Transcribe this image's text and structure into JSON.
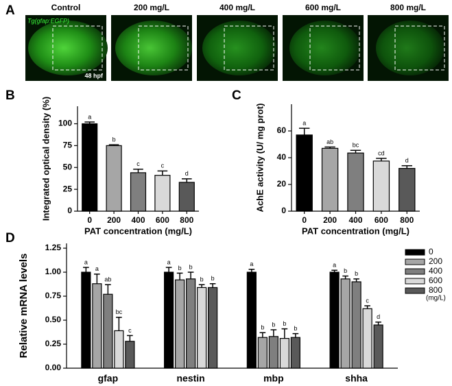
{
  "panels": [
    "A",
    "B",
    "C",
    "D"
  ],
  "images": {
    "titles": [
      "Control",
      "200 mg/L",
      "400 mg/L",
      "600 mg/L",
      "800 mg/L"
    ],
    "label": "Tg(gfap:EGFP)",
    "stage": "48 hpf"
  },
  "chart_data": [
    {
      "type": "bar",
      "ylabel": "Integrated optical density (%)",
      "xlabel": "PAT concentration (mg/L)",
      "categories": [
        "0",
        "200",
        "400",
        "600",
        "800"
      ],
      "values": [
        100,
        75,
        44,
        41,
        33
      ],
      "errors": [
        2,
        1,
        4,
        5,
        4
      ],
      "letters": [
        "a",
        "b",
        "c",
        "c",
        "d"
      ],
      "colors": [
        "#000000",
        "#a6a6a6",
        "#7f7f7f",
        "#d9d9d9",
        "#595959"
      ],
      "ylim": [
        0,
        120
      ],
      "yticks": [
        0,
        25,
        50,
        75,
        100
      ]
    },
    {
      "type": "bar",
      "ylabel": "AchE activity (U/ mg prot)",
      "xlabel": "PAT concentration (mg/L)",
      "categories": [
        "0",
        "200",
        "400",
        "600",
        "800"
      ],
      "values": [
        57,
        47,
        43.5,
        37.5,
        32
      ],
      "errors": [
        5,
        1,
        2,
        2,
        2
      ],
      "letters": [
        "a",
        "ab",
        "bc",
        "cd",
        "d"
      ],
      "colors": [
        "#000000",
        "#a6a6a6",
        "#7f7f7f",
        "#d9d9d9",
        "#595959"
      ],
      "ylim": [
        0,
        80
      ],
      "yticks": [
        0,
        20,
        40,
        60
      ]
    },
    {
      "type": "grouped_bar",
      "ylabel": "Relative mRNA levels",
      "categories": [
        "gfap",
        "nestin",
        "mbp",
        "shha"
      ],
      "legend_note": "(mg/L)",
      "series": [
        {
          "name": "0",
          "color": "#000000",
          "values": [
            1.0,
            1.0,
            1.0,
            1.0
          ],
          "errors": [
            0.05,
            0.05,
            0.03,
            0.02
          ],
          "letters": [
            "a",
            "a",
            "a",
            "a"
          ]
        },
        {
          "name": "200",
          "color": "#a6a6a6",
          "values": [
            0.88,
            0.92,
            0.32,
            0.93
          ],
          "errors": [
            0.1,
            0.07,
            0.05,
            0.03
          ],
          "letters": [
            "a",
            "b",
            "b",
            "b"
          ]
        },
        {
          "name": "400",
          "color": "#7f7f7f",
          "values": [
            0.77,
            0.93,
            0.33,
            0.9
          ],
          "errors": [
            0.1,
            0.07,
            0.07,
            0.03
          ],
          "letters": [
            "ab",
            "b",
            "b",
            "b"
          ]
        },
        {
          "name": "600",
          "color": "#d9d9d9",
          "values": [
            0.39,
            0.84,
            0.31,
            0.62
          ],
          "errors": [
            0.14,
            0.03,
            0.1,
            0.03
          ],
          "letters": [
            "bc",
            "b",
            "b",
            "c"
          ]
        },
        {
          "name": "800",
          "color": "#595959",
          "values": [
            0.28,
            0.84,
            0.32,
            0.45
          ],
          "errors": [
            0.06,
            0.04,
            0.04,
            0.03
          ],
          "letters": [
            "c",
            "b",
            "b",
            "d"
          ]
        }
      ],
      "ylim": [
        0,
        1.3
      ],
      "yticks": [
        {
          "value": 0,
          "label": "0.00"
        },
        {
          "value": 0.25,
          "label": "0.25"
        },
        {
          "value": 0.5,
          "label": "0.50"
        },
        {
          "value": 0.75,
          "label": "0.75"
        },
        {
          "value": 1,
          "label": "1.00"
        },
        {
          "value": 1.25,
          "label": "1.25"
        }
      ]
    }
  ]
}
